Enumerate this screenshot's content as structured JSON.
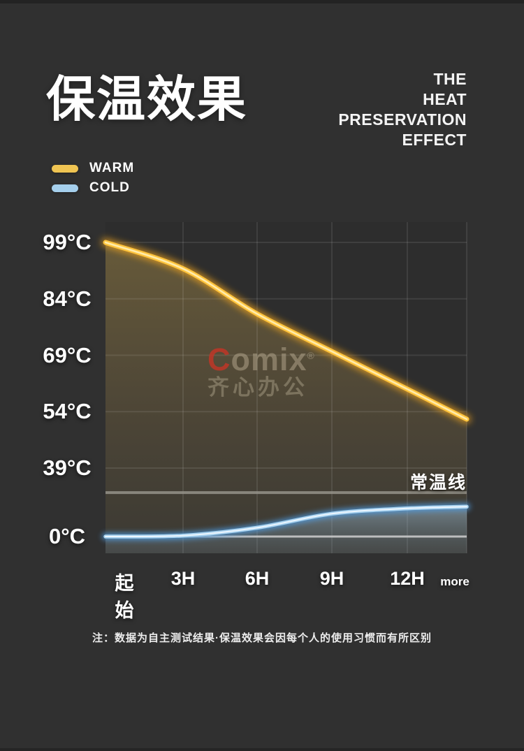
{
  "page": {
    "title": "保温效果",
    "subtitle": "THE\nHEAT\nPRESERVATION\nEFFECT",
    "note": "注：数据为自主测试结果·保温效果会因每个人的使用习惯而有所区别",
    "background_color": "#303030"
  },
  "legend": {
    "items": [
      {
        "label": "WARM",
        "color": "#EFC452"
      },
      {
        "label": "COLD",
        "color": "#A5CFEC"
      }
    ]
  },
  "watermark": {
    "brand_c": "C",
    "brand_rest": "omix",
    "registered": "®",
    "text": "齐心办公",
    "brand_color": "#C63426"
  },
  "chart_data": {
    "type": "line",
    "title": "保温效果 (heat preservation over time)",
    "categories": [
      "起始",
      "3H",
      "6H",
      "9H",
      "12H",
      "more"
    ],
    "series": [
      {
        "name": "WARM",
        "values": [
          99,
          92,
          80,
          70,
          60,
          52
        ],
        "color": "#FFC43D",
        "unit": "°C"
      },
      {
        "name": "COLD",
        "values": [
          0,
          0.5,
          5,
          13,
          16,
          17
        ],
        "color": "#A9D3F0",
        "unit": "°C"
      }
    ],
    "y_ticks": [
      "99°C",
      "84°C",
      "69°C",
      "54°C",
      "39°C",
      "0°C"
    ],
    "y_tick_values": [
      99,
      84,
      69,
      54,
      39,
      0
    ],
    "reference_line": {
      "label": "常温线",
      "value": 25
    },
    "xlabel": "",
    "ylabel": "",
    "grid": true,
    "legend_position": "top-left",
    "axis_note": "y axis is compressed below 39°C"
  }
}
